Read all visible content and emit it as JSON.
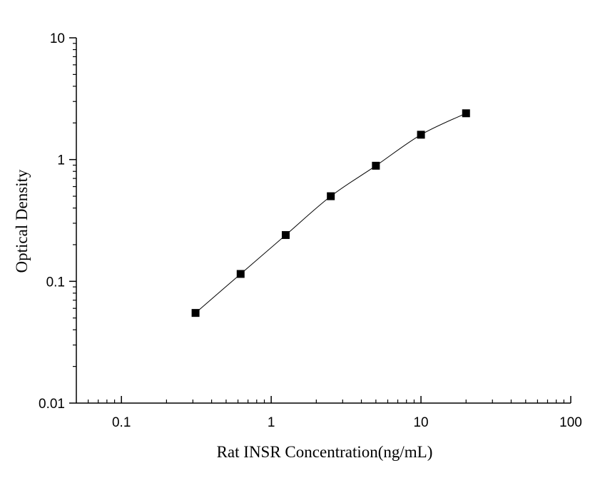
{
  "chart_data": {
    "type": "scatter",
    "title": "",
    "xlabel": "Rat INSR Concentration(ng/mL)",
    "ylabel": "Optical Density",
    "xscale": "log",
    "yscale": "log",
    "xlim": [
      0.05,
      100
    ],
    "ylim": [
      0.01,
      10
    ],
    "x_ticks": [
      {
        "value": 0.1,
        "label": "0.1"
      },
      {
        "value": 1,
        "label": "1"
      },
      {
        "value": 10,
        "label": "10"
      },
      {
        "value": 100,
        "label": "100"
      }
    ],
    "y_ticks": [
      {
        "value": 0.01,
        "label": "0.01"
      },
      {
        "value": 0.1,
        "label": "0.1"
      },
      {
        "value": 1,
        "label": "1"
      },
      {
        "value": 10,
        "label": "10"
      }
    ],
    "grid": false,
    "legend": "none",
    "series": [
      {
        "marker": "square",
        "color": "#000000",
        "x": [
          0.3125,
          0.625,
          1.25,
          2.5,
          5,
          10,
          20
        ],
        "y": [
          0.055,
          0.115,
          0.24,
          0.5,
          0.89,
          1.6,
          2.4
        ]
      }
    ],
    "fit_curve": true
  }
}
